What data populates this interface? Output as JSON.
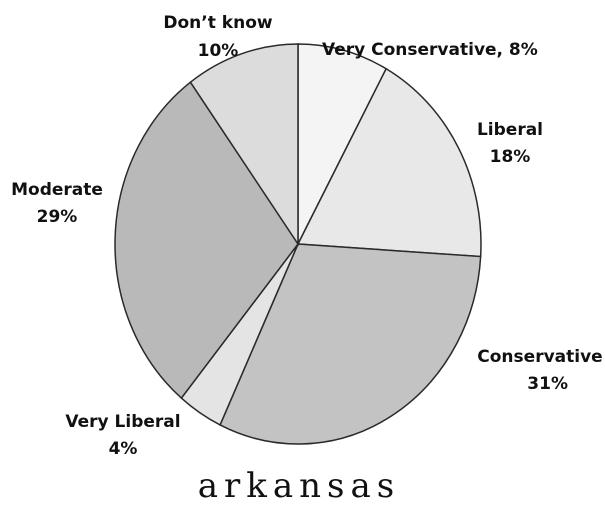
{
  "chart_data": {
    "type": "pie",
    "title": "arkansas",
    "slices": [
      {
        "label": "Very Conservative",
        "value": 8,
        "value_text": "8%",
        "color": "#f4f4f4"
      },
      {
        "label": "Liberal",
        "value": 18,
        "value_text": "18%",
        "color": "#e8e8e8"
      },
      {
        "label": "Conservative",
        "value": 31,
        "value_text": "31%",
        "color": "#c3c3c3"
      },
      {
        "label": "Very Liberal",
        "value": 4,
        "value_text": "4%",
        "color": "#e4e4e4"
      },
      {
        "label": "Moderate",
        "value": 29,
        "value_text": "29%",
        "color": "#b9b9b9"
      },
      {
        "label": "Don’t know",
        "value": 10,
        "value_text": "10%",
        "color": "#dcdcdc"
      }
    ],
    "labels": {
      "very_conservative": "Very Conservative, 8%",
      "liberal_name": "Liberal",
      "liberal_pct": "18%",
      "conservative_name": "Conservative",
      "conservative_pct": "31%",
      "very_liberal_name": "Very Liberal",
      "very_liberal_pct": "4%",
      "moderate_name": "Moderate",
      "moderate_pct": "29%",
      "dont_know_name": "Don’t know",
      "dont_know_pct": "10%"
    }
  }
}
